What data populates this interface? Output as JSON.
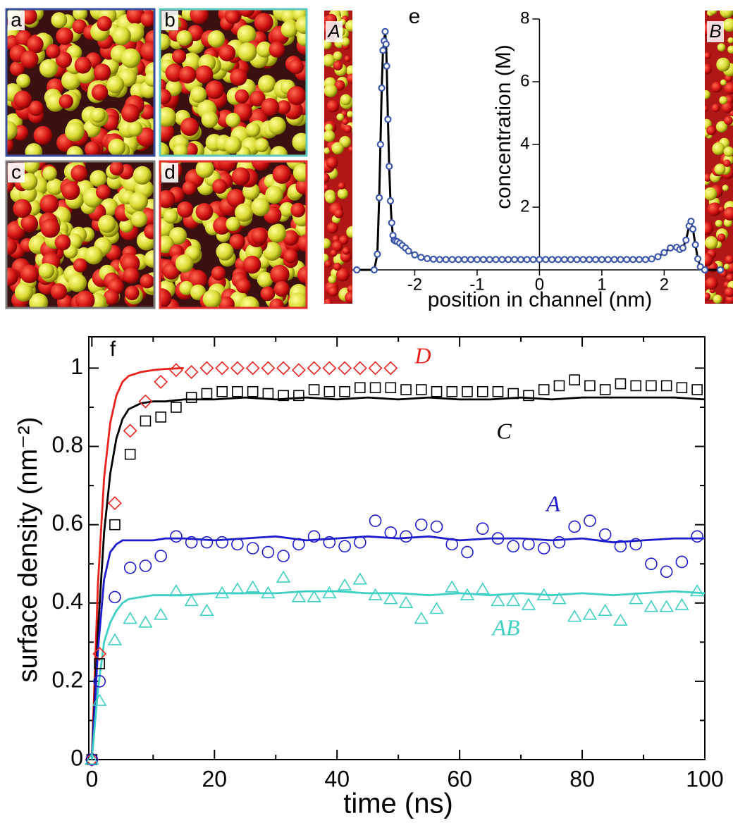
{
  "panels": {
    "labels": [
      "a",
      "b",
      "c",
      "d"
    ]
  },
  "chart_data": [
    {
      "type": "line",
      "label": "e",
      "xlabel": "position in channel (nm)",
      "ylabel": "concentration (M)",
      "side_labels": [
        "A",
        "B"
      ],
      "xlim": [
        -3.0,
        2.9
      ],
      "ylim": [
        0,
        8
      ],
      "xticks": [
        -2,
        -1,
        0,
        1,
        2
      ],
      "yticks": [
        2,
        4,
        6,
        8
      ],
      "series": [
        {
          "color": "#3d57aa",
          "line_color": "#000000",
          "marker": "circle",
          "x": [
            -2.93,
            -2.65,
            -2.6,
            -2.57,
            -2.55,
            -2.53,
            -2.51,
            -2.49,
            -2.475,
            -2.46,
            -2.45,
            -2.43,
            -2.41,
            -2.39,
            -2.37,
            -2.35,
            -2.33,
            -2.31,
            -2.28,
            -2.24,
            -2.2,
            -2.15,
            -2.1,
            -2.0,
            -1.9,
            -1.8,
            -1.7,
            -1.6,
            -1.5,
            -1.4,
            -1.3,
            -1.2,
            -1.1,
            -1,
            -0.9,
            -0.8,
            -0.7,
            -0.6,
            -0.5,
            -0.4,
            -0.3,
            -0.2,
            -0.1,
            0,
            0.1,
            0.2,
            0.3,
            0.4,
            0.5,
            0.6,
            0.7,
            0.8,
            0.9,
            1,
            1.1,
            1.2,
            1.3,
            1.4,
            1.5,
            1.6,
            1.7,
            1.8,
            1.9,
            2.0,
            2.1,
            2.2,
            2.25,
            2.3,
            2.35,
            2.4,
            2.43,
            2.46,
            2.5,
            2.54,
            2.58,
            2.65,
            2.9
          ],
          "values": [
            0,
            0,
            0.5,
            2.3,
            4.0,
            5.8,
            7.0,
            7.3,
            7.6,
            7.2,
            6.5,
            4.8,
            3.3,
            2.2,
            1.5,
            1.1,
            0.95,
            0.92,
            0.9,
            0.85,
            0.78,
            0.7,
            0.6,
            0.48,
            0.4,
            0.36,
            0.34,
            0.33,
            0.33,
            0.33,
            0.33,
            0.33,
            0.33,
            0.33,
            0.33,
            0.33,
            0.33,
            0.33,
            0.33,
            0.33,
            0.33,
            0.33,
            0.33,
            0.33,
            0.33,
            0.33,
            0.33,
            0.33,
            0.33,
            0.33,
            0.33,
            0.33,
            0.33,
            0.33,
            0.33,
            0.33,
            0.33,
            0.33,
            0.33,
            0.33,
            0.33,
            0.35,
            0.42,
            0.55,
            0.7,
            0.72,
            0.65,
            0.7,
            0.95,
            1.4,
            1.55,
            1.3,
            0.8,
            0.35,
            0.1,
            0,
            0
          ]
        }
      ]
    },
    {
      "type": "line",
      "label": "f",
      "xlabel": "time (ns)",
      "ylabel": "surface density (nm⁻²)",
      "xlim": [
        -0.5,
        100
      ],
      "ylim": [
        0,
        1.08
      ],
      "xticks": [
        0,
        20,
        40,
        60,
        80,
        100
      ],
      "yticks": [
        0,
        0.2,
        0.4,
        0.6,
        0.8,
        1
      ],
      "xminorticks": [
        10,
        30,
        50,
        70,
        90
      ],
      "yminorticks": [
        0.1,
        0.3,
        0.5,
        0.7,
        0.9
      ],
      "annotations": [
        {
          "text": "D",
          "color": "#e8231e"
        },
        {
          "text": "C",
          "color": "#000000"
        },
        {
          "text": "A",
          "color": "#1c1ccc"
        },
        {
          "text": "AB",
          "color": "#3fcfc4"
        }
      ],
      "series": [
        {
          "color": "#e8231e",
          "marker": "none",
          "x": [
            0,
            1,
            2,
            3,
            4,
            5,
            6,
            8,
            10,
            12,
            15
          ],
          "values": [
            0,
            0.45,
            0.72,
            0.86,
            0.93,
            0.965,
            0.98,
            0.99,
            0.995,
            0.998,
            1.0
          ]
        },
        {
          "color": "#000000",
          "marker": "none",
          "x": [
            0,
            1,
            2,
            3,
            4,
            5,
            6,
            8,
            10,
            12,
            15,
            20,
            25,
            30,
            35,
            40,
            45,
            50,
            55,
            60,
            65,
            70,
            75,
            80,
            85,
            90,
            95,
            100
          ],
          "values": [
            0,
            0.33,
            0.58,
            0.73,
            0.82,
            0.87,
            0.895,
            0.91,
            0.915,
            0.915,
            0.92,
            0.92,
            0.925,
            0.92,
            0.925,
            0.92,
            0.925,
            0.92,
            0.925,
            0.92,
            0.92,
            0.925,
            0.92,
            0.925,
            0.925,
            0.925,
            0.925,
            0.92
          ]
        },
        {
          "color": "#1c1ccc",
          "marker": "none",
          "x": [
            0,
            1,
            2,
            3,
            4,
            5,
            6,
            8,
            10,
            12,
            15,
            20,
            25,
            30,
            35,
            40,
            45,
            50,
            55,
            60,
            65,
            70,
            75,
            80,
            85,
            90,
            95,
            100
          ],
          "values": [
            0,
            0.28,
            0.46,
            0.53,
            0.55,
            0.56,
            0.56,
            0.56,
            0.56,
            0.565,
            0.565,
            0.56,
            0.565,
            0.57,
            0.56,
            0.565,
            0.57,
            0.565,
            0.57,
            0.56,
            0.565,
            0.565,
            0.56,
            0.565,
            0.555,
            0.56,
            0.565,
            0.565
          ]
        },
        {
          "color": "#3fcfc4",
          "marker": "none",
          "x": [
            0,
            1,
            2,
            3,
            4,
            5,
            6,
            8,
            10,
            12,
            15,
            20,
            25,
            30,
            35,
            40,
            45,
            50,
            55,
            60,
            65,
            70,
            75,
            80,
            85,
            90,
            95,
            100
          ],
          "values": [
            0,
            0.18,
            0.3,
            0.35,
            0.38,
            0.4,
            0.41,
            0.415,
            0.42,
            0.42,
            0.42,
            0.425,
            0.425,
            0.425,
            0.43,
            0.43,
            0.425,
            0.425,
            0.42,
            0.425,
            0.42,
            0.425,
            0.42,
            0.425,
            0.42,
            0.425,
            0.43,
            0.425
          ]
        },
        {
          "color": "#e8231e",
          "marker": "diamond",
          "x": [
            0,
            1.25,
            3.75,
            6.25,
            8.75,
            11.25,
            13.75,
            16.25,
            18.75,
            21.25,
            23.75,
            26.25,
            28.75,
            31.25,
            33.75,
            36.25,
            38.75,
            41.25,
            43.75,
            46.25,
            48.75
          ],
          "values": [
            0,
            0.27,
            0.655,
            0.84,
            0.915,
            0.965,
            0.995,
            0.99,
            1.0,
            1.0,
            1.0,
            1.0,
            1.0,
            1.0,
            0.995,
            1.0,
            1.0,
            1.0,
            1.0,
            1.0,
            1.0
          ]
        },
        {
          "color": "#000000",
          "marker": "square",
          "x": [
            0,
            1.25,
            3.75,
            6.25,
            8.75,
            11.25,
            13.75,
            16.25,
            18.75,
            21.25,
            23.75,
            26.25,
            28.75,
            31.25,
            33.75,
            36.25,
            38.75,
            41.25,
            43.75,
            46.25,
            48.75,
            51.25,
            53.75,
            56.25,
            58.75,
            61.25,
            63.75,
            66.25,
            68.75,
            71.25,
            73.75,
            76.25,
            78.75,
            81.25,
            83.75,
            86.25,
            88.75,
            91.25,
            93.75,
            96.25,
            98.75
          ],
          "values": [
            0,
            0.245,
            0.6,
            0.78,
            0.865,
            0.875,
            0.9,
            0.925,
            0.935,
            0.94,
            0.94,
            0.94,
            0.935,
            0.93,
            0.93,
            0.945,
            0.94,
            0.94,
            0.95,
            0.95,
            0.95,
            0.945,
            0.945,
            0.94,
            0.94,
            0.94,
            0.94,
            0.94,
            0.935,
            0.93,
            0.945,
            0.955,
            0.97,
            0.955,
            0.945,
            0.96,
            0.955,
            0.955,
            0.955,
            0.95,
            0.945
          ]
        },
        {
          "color": "#1c1ccc",
          "marker": "circle",
          "x": [
            0,
            1.25,
            3.75,
            6.25,
            8.75,
            11.25,
            13.75,
            16.25,
            18.75,
            21.25,
            23.75,
            26.25,
            28.75,
            31.25,
            33.75,
            36.25,
            38.75,
            41.25,
            43.75,
            46.25,
            48.75,
            51.25,
            53.75,
            56.25,
            58.75,
            61.25,
            63.75,
            66.25,
            68.75,
            71.25,
            73.75,
            76.25,
            78.75,
            81.25,
            83.75,
            86.25,
            88.75,
            91.25,
            93.75,
            96.25,
            98.75
          ],
          "values": [
            0,
            0.2,
            0.415,
            0.49,
            0.495,
            0.52,
            0.57,
            0.555,
            0.555,
            0.555,
            0.55,
            0.54,
            0.53,
            0.52,
            0.55,
            0.57,
            0.555,
            0.545,
            0.555,
            0.61,
            0.58,
            0.57,
            0.6,
            0.595,
            0.55,
            0.53,
            0.59,
            0.565,
            0.545,
            0.55,
            0.54,
            0.555,
            0.595,
            0.61,
            0.575,
            0.545,
            0.55,
            0.5,
            0.48,
            0.505,
            0.57
          ]
        },
        {
          "color": "#3fcfc4",
          "marker": "triangle",
          "x": [
            0,
            1.25,
            3.75,
            6.25,
            8.75,
            11.25,
            13.75,
            16.25,
            18.75,
            21.25,
            23.75,
            26.25,
            28.75,
            31.25,
            33.75,
            36.25,
            38.75,
            41.25,
            43.75,
            46.25,
            48.75,
            51.25,
            53.75,
            56.25,
            58.75,
            61.25,
            63.75,
            66.25,
            68.75,
            71.25,
            73.75,
            76.25,
            78.75,
            81.25,
            83.75,
            86.25,
            88.75,
            91.25,
            93.75,
            96.25,
            98.75
          ],
          "values": [
            0,
            0.15,
            0.305,
            0.36,
            0.35,
            0.37,
            0.43,
            0.405,
            0.38,
            0.425,
            0.435,
            0.44,
            0.425,
            0.465,
            0.415,
            0.415,
            0.425,
            0.445,
            0.46,
            0.42,
            0.41,
            0.4,
            0.36,
            0.385,
            0.44,
            0.42,
            0.435,
            0.405,
            0.405,
            0.395,
            0.42,
            0.41,
            0.365,
            0.37,
            0.38,
            0.355,
            0.41,
            0.39,
            0.39,
            0.395,
            0.43
          ]
        }
      ]
    }
  ]
}
